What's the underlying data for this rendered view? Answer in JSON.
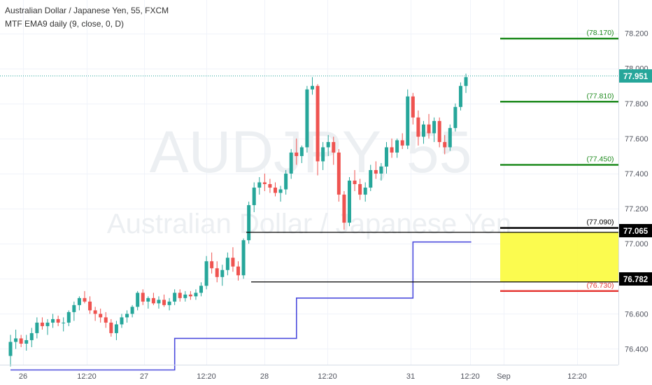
{
  "header": {
    "title_line": "Australian Dollar / Japanese Yen, 55, FXCM",
    "indicator_line": "MTF EMA9 daily (9, close, 0, D)"
  },
  "chart_data": {
    "type": "candlestick",
    "watermark": {
      "symbol": "AUDJPY, 55",
      "name": "Australian Dollar / Japanese Yen"
    },
    "y_axis": {
      "ticks": [
        "76.400",
        "76.600",
        "76.800",
        "77.000",
        "77.200",
        "77.400",
        "77.600",
        "77.800",
        "78.000",
        "78.200"
      ],
      "ylim": [
        76.31,
        78.39
      ]
    },
    "x_axis": {
      "ticks": [
        "26",
        "12:20",
        "27",
        "12:20",
        "28",
        "12:20",
        "31",
        "12:20",
        "Sep",
        "12:20"
      ]
    },
    "current_price": "77.951",
    "candles": [
      [
        76.36,
        76.48,
        76.3,
        76.44
      ],
      [
        76.44,
        76.51,
        76.4,
        76.46
      ],
      [
        76.46,
        76.48,
        76.41,
        76.43
      ],
      [
        76.43,
        76.48,
        76.39,
        76.45
      ],
      [
        76.45,
        76.52,
        76.41,
        76.49
      ],
      [
        76.49,
        76.58,
        76.46,
        76.55
      ],
      [
        76.55,
        76.58,
        76.51,
        76.53
      ],
      [
        76.53,
        76.57,
        76.48,
        76.55
      ],
      [
        76.55,
        76.6,
        76.52,
        76.57
      ],
      [
        76.57,
        76.59,
        76.53,
        76.55
      ],
      [
        76.55,
        76.58,
        76.5,
        76.55
      ],
      [
        76.55,
        76.62,
        76.53,
        76.61
      ],
      [
        76.61,
        76.67,
        76.56,
        76.65
      ],
      [
        76.65,
        76.7,
        76.62,
        76.69
      ],
      [
        76.69,
        76.73,
        76.66,
        76.67
      ],
      [
        76.67,
        76.7,
        76.6,
        76.62
      ],
      [
        76.62,
        76.64,
        76.56,
        76.6
      ],
      [
        76.6,
        76.63,
        76.55,
        76.58
      ],
      [
        76.58,
        76.61,
        76.52,
        76.55
      ],
      [
        76.55,
        76.57,
        76.47,
        76.49
      ],
      [
        76.49,
        76.56,
        76.45,
        76.54
      ],
      [
        76.54,
        76.6,
        76.52,
        76.58
      ],
      [
        76.58,
        76.62,
        76.55,
        76.6
      ],
      [
        76.6,
        76.65,
        76.58,
        76.64
      ],
      [
        76.64,
        76.73,
        76.62,
        76.72
      ],
      [
        76.72,
        76.74,
        76.65,
        76.67
      ],
      [
        76.67,
        76.7,
        76.63,
        76.69
      ],
      [
        76.69,
        76.72,
        76.65,
        76.66
      ],
      [
        76.66,
        76.7,
        76.63,
        76.68
      ],
      [
        76.68,
        76.71,
        76.64,
        76.65
      ],
      [
        76.65,
        76.69,
        76.62,
        76.67
      ],
      [
        76.67,
        76.74,
        76.65,
        76.72
      ],
      [
        76.72,
        76.74,
        76.67,
        76.69
      ],
      [
        76.69,
        76.73,
        76.67,
        76.71
      ],
      [
        76.71,
        76.73,
        76.68,
        76.7
      ],
      [
        76.7,
        76.74,
        76.68,
        76.72
      ],
      [
        76.72,
        76.78,
        76.7,
        76.76
      ],
      [
        76.76,
        76.93,
        76.74,
        76.9
      ],
      [
        76.9,
        76.95,
        76.83,
        76.86
      ],
      [
        76.86,
        76.9,
        76.78,
        76.81
      ],
      [
        76.81,
        76.88,
        76.76,
        76.85
      ],
      [
        76.85,
        76.95,
        76.82,
        76.92
      ],
      [
        76.92,
        76.98,
        76.84,
        76.87
      ],
      [
        76.87,
        76.9,
        76.79,
        76.82
      ],
      [
        76.82,
        77.03,
        76.8,
        77.02
      ],
      [
        77.02,
        77.24,
        77.0,
        77.22
      ],
      [
        77.22,
        77.35,
        77.18,
        77.32
      ],
      [
        77.32,
        77.38,
        77.28,
        77.35
      ],
      [
        77.35,
        77.4,
        77.3,
        77.34
      ],
      [
        77.34,
        77.37,
        77.29,
        77.32
      ],
      [
        77.32,
        77.35,
        77.27,
        77.29
      ],
      [
        77.29,
        77.33,
        77.24,
        77.31
      ],
      [
        77.31,
        77.42,
        77.28,
        77.4
      ],
      [
        77.4,
        77.54,
        77.37,
        77.52
      ],
      [
        77.52,
        77.6,
        77.45,
        77.5
      ],
      [
        77.5,
        77.56,
        77.46,
        77.55
      ],
      [
        77.55,
        77.9,
        77.52,
        77.88
      ],
      [
        77.88,
        77.95,
        77.85,
        77.9
      ],
      [
        77.9,
        77.91,
        77.39,
        77.47
      ],
      [
        77.47,
        77.58,
        77.42,
        77.55
      ],
      [
        77.55,
        77.62,
        77.5,
        77.58
      ],
      [
        77.58,
        77.61,
        77.45,
        77.52
      ],
      [
        77.52,
        77.54,
        77.24,
        77.28
      ],
      [
        77.28,
        77.3,
        77.08,
        77.12
      ],
      [
        77.12,
        77.38,
        77.1,
        77.36
      ],
      [
        77.36,
        77.42,
        77.3,
        77.34
      ],
      [
        77.34,
        77.37,
        77.25,
        77.28
      ],
      [
        77.28,
        77.35,
        77.24,
        77.32
      ],
      [
        77.32,
        77.45,
        77.3,
        77.42
      ],
      [
        77.42,
        77.47,
        77.37,
        77.4
      ],
      [
        77.4,
        77.46,
        77.36,
        77.44
      ],
      [
        77.44,
        77.58,
        77.4,
        77.55
      ],
      [
        77.55,
        77.6,
        77.49,
        77.52
      ],
      [
        77.52,
        77.6,
        77.49,
        77.59
      ],
      [
        77.59,
        77.63,
        77.54,
        77.56
      ],
      [
        77.56,
        77.88,
        77.54,
        77.84
      ],
      [
        77.84,
        77.86,
        77.68,
        77.72
      ],
      [
        77.72,
        77.76,
        77.56,
        77.61
      ],
      [
        77.61,
        77.7,
        77.57,
        77.68
      ],
      [
        77.68,
        77.74,
        77.6,
        77.63
      ],
      [
        77.63,
        77.72,
        77.58,
        77.7
      ],
      [
        77.7,
        77.72,
        77.55,
        77.58
      ],
      [
        77.58,
        77.62,
        77.51,
        77.55
      ],
      [
        77.55,
        77.68,
        77.53,
        77.66
      ],
      [
        77.66,
        77.8,
        77.64,
        77.78
      ],
      [
        77.78,
        77.92,
        77.76,
        77.9
      ],
      [
        77.9,
        77.97,
        77.86,
        77.95
      ]
    ],
    "ema_steps": [
      [
        0,
        76.28
      ],
      [
        31,
        76.28
      ],
      [
        31,
        76.46
      ],
      [
        54,
        76.46
      ],
      [
        54,
        76.69
      ],
      [
        76,
        76.69
      ],
      [
        76,
        77.01
      ],
      [
        87,
        77.01
      ]
    ],
    "level_lines": [
      {
        "name": "level-78170",
        "value": 78.17,
        "label": "(78.170)",
        "color": "#1e8a1e"
      },
      {
        "name": "level-77810",
        "value": 77.81,
        "label": "(77.810)",
        "color": "#1e8a1e"
      },
      {
        "name": "level-77450",
        "value": 77.45,
        "label": "(77.450)",
        "color": "#1e8a1e"
      },
      {
        "name": "level-77090",
        "value": 77.09,
        "label": "(77.090)",
        "color": "#000000"
      },
      {
        "name": "level-76730",
        "value": 76.73,
        "label": "(76.730)",
        "color": "#e53935"
      }
    ],
    "range_box": {
      "top": 77.065,
      "bottom": 76.782
    },
    "range_top_label": "77.065",
    "range_bottom_label": "76.782",
    "colors": {
      "up": "#26a69a",
      "down": "#ef5350",
      "ema": "#4c4cdd",
      "zone": "#fbfb3c",
      "grid": "#f0f3fa"
    }
  }
}
